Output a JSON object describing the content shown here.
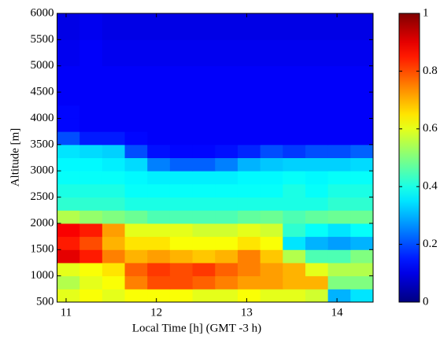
{
  "chart_data": {
    "type": "heatmap",
    "xlabel": "Local Time [h] (GMT -3 h)",
    "ylabel": "Altitude [m]",
    "colormap": "jet",
    "x": [
      11.025,
      11.275,
      11.525,
      11.775,
      12.025,
      12.275,
      12.525,
      12.775,
      13.025,
      13.275,
      13.525,
      13.775,
      14.025,
      14.275
    ],
    "y": [
      625,
      875,
      1125,
      1375,
      1625,
      1875,
      2125,
      2375,
      2625,
      2875,
      3125,
      3375,
      3625,
      3875,
      4125,
      4375,
      4625,
      4875,
      5125,
      5375,
      5625,
      5875
    ],
    "values": [
      [
        0.6,
        0.62,
        0.6,
        0.62,
        0.62,
        0.62,
        0.6,
        0.6,
        0.62,
        0.6,
        0.6,
        0.58,
        0.3,
        0.35
      ],
      [
        0.55,
        0.6,
        0.62,
        0.75,
        0.8,
        0.8,
        0.78,
        0.75,
        0.72,
        0.72,
        0.7,
        0.7,
        0.5,
        0.5
      ],
      [
        0.6,
        0.62,
        0.65,
        0.78,
        0.82,
        0.8,
        0.82,
        0.78,
        0.75,
        0.72,
        0.7,
        0.6,
        0.55,
        0.55
      ],
      [
        0.9,
        0.85,
        0.75,
        0.7,
        0.72,
        0.7,
        0.68,
        0.7,
        0.75,
        0.68,
        0.55,
        0.45,
        0.45,
        0.5
      ],
      [
        0.85,
        0.8,
        0.7,
        0.65,
        0.65,
        0.62,
        0.62,
        0.62,
        0.65,
        0.62,
        0.35,
        0.3,
        0.28,
        0.3
      ],
      [
        0.88,
        0.85,
        0.72,
        0.6,
        0.6,
        0.6,
        0.58,
        0.58,
        0.6,
        0.58,
        0.42,
        0.38,
        0.35,
        0.38
      ],
      [
        0.55,
        0.52,
        0.5,
        0.48,
        0.45,
        0.45,
        0.45,
        0.45,
        0.47,
        0.48,
        0.45,
        0.47,
        0.48,
        0.48
      ],
      [
        0.42,
        0.42,
        0.42,
        0.4,
        0.4,
        0.4,
        0.4,
        0.4,
        0.4,
        0.4,
        0.4,
        0.4,
        0.42,
        0.42
      ],
      [
        0.4,
        0.4,
        0.4,
        0.38,
        0.38,
        0.38,
        0.38,
        0.38,
        0.38,
        0.38,
        0.4,
        0.38,
        0.4,
        0.4
      ],
      [
        0.38,
        0.38,
        0.38,
        0.37,
        0.36,
        0.36,
        0.36,
        0.36,
        0.37,
        0.37,
        0.38,
        0.37,
        0.38,
        0.38
      ],
      [
        0.37,
        0.37,
        0.36,
        0.34,
        0.25,
        0.22,
        0.22,
        0.25,
        0.3,
        0.32,
        0.33,
        0.33,
        0.33,
        0.34
      ],
      [
        0.35,
        0.34,
        0.33,
        0.2,
        0.14,
        0.13,
        0.13,
        0.14,
        0.16,
        0.2,
        0.18,
        0.2,
        0.2,
        0.22
      ],
      [
        0.2,
        0.15,
        0.15,
        0.13,
        0.12,
        0.12,
        0.12,
        0.12,
        0.12,
        0.12,
        0.12,
        0.12,
        0.12,
        0.12
      ],
      [
        0.13,
        0.12,
        0.12,
        0.12,
        0.12,
        0.12,
        0.12,
        0.12,
        0.12,
        0.12,
        0.12,
        0.12,
        0.12,
        0.12
      ],
      [
        0.13,
        0.12,
        0.12,
        0.12,
        0.12,
        0.12,
        0.12,
        0.12,
        0.12,
        0.12,
        0.12,
        0.12,
        0.12,
        0.12
      ],
      [
        0.12,
        0.12,
        0.12,
        0.12,
        0.12,
        0.12,
        0.12,
        0.12,
        0.12,
        0.12,
        0.12,
        0.12,
        0.12,
        0.12
      ],
      [
        0.12,
        0.12,
        0.12,
        0.12,
        0.12,
        0.12,
        0.12,
        0.12,
        0.12,
        0.12,
        0.12,
        0.12,
        0.12,
        0.12
      ],
      [
        0.12,
        0.12,
        0.12,
        0.12,
        0.12,
        0.12,
        0.12,
        0.12,
        0.12,
        0.12,
        0.12,
        0.12,
        0.12,
        0.12
      ],
      [
        0.11,
        0.12,
        0.11,
        0.11,
        0.11,
        0.11,
        0.11,
        0.11,
        0.11,
        0.11,
        0.11,
        0.11,
        0.11,
        0.11
      ],
      [
        0.11,
        0.12,
        0.11,
        0.11,
        0.11,
        0.11,
        0.11,
        0.11,
        0.11,
        0.11,
        0.11,
        0.11,
        0.11,
        0.11
      ],
      [
        0.1,
        0.11,
        0.1,
        0.1,
        0.1,
        0.1,
        0.1,
        0.1,
        0.1,
        0.1,
        0.1,
        0.1,
        0.1,
        0.1
      ],
      [
        0.1,
        0.11,
        0.1,
        0.1,
        0.1,
        0.1,
        0.1,
        0.1,
        0.1,
        0.1,
        0.1,
        0.1,
        0.1,
        0.1
      ]
    ],
    "xlim": [
      10.9,
      14.4
    ],
    "xticks": [
      11,
      12,
      13,
      14
    ],
    "ylim": [
      500,
      6000
    ],
    "yticks": [
      500,
      1000,
      1500,
      2000,
      2500,
      3000,
      3500,
      4000,
      4500,
      5000,
      5500,
      6000
    ],
    "clim": [
      0,
      1
    ],
    "cticks": [
      0,
      0.2,
      0.4,
      0.6,
      0.8,
      1
    ]
  }
}
